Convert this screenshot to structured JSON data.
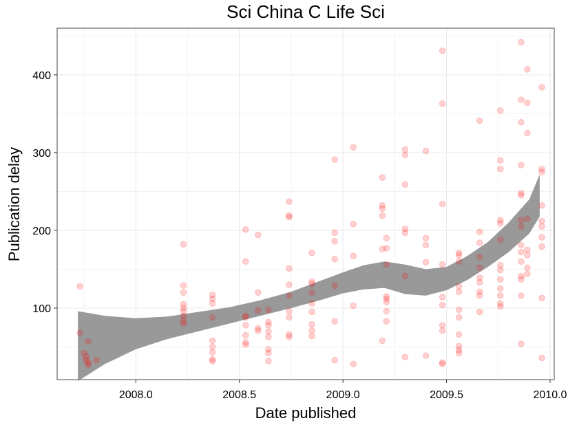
{
  "chart_data": {
    "type": "scatter",
    "title": "Sci China C Life Sci",
    "xlabel": "Date published",
    "ylabel": "Publication delay",
    "xlim": [
      2007.62,
      2010.02
    ],
    "ylim": [
      8,
      460
    ],
    "x_ticks": [
      2008.0,
      2008.5,
      2009.0,
      2009.5,
      2010.0
    ],
    "x_tick_labels": [
      "2008.0",
      "2008.5",
      "2009.0",
      "2009.5",
      "2010.0"
    ],
    "y_ticks": [
      100,
      200,
      300,
      400
    ],
    "y_tick_labels": [
      "100",
      "200",
      "300",
      "400"
    ],
    "grid": true,
    "point_color": "#ff0000",
    "point_opacity": 0.18,
    "ribbon_color": "#999999",
    "panel_border_color": "#8a8a8a",
    "grid_color": "#ebebeb",
    "series": [
      {
        "points": [
          [
            2007.73,
            128
          ],
          [
            2007.73,
            68
          ],
          [
            2007.75,
            42
          ],
          [
            2007.76,
            38
          ],
          [
            2007.76,
            33
          ],
          [
            2007.77,
            57
          ],
          [
            2007.77,
            30
          ],
          [
            2007.77,
            27
          ],
          [
            2007.81,
            33
          ],
          [
            2008.23,
            182
          ],
          [
            2008.23,
            129
          ],
          [
            2008.23,
            120
          ],
          [
            2008.23,
            105
          ],
          [
            2008.23,
            100
          ],
          [
            2008.23,
            96
          ],
          [
            2008.23,
            90
          ],
          [
            2008.23,
            84
          ],
          [
            2008.23,
            80
          ],
          [
            2008.37,
            117
          ],
          [
            2008.37,
            112
          ],
          [
            2008.37,
            106
          ],
          [
            2008.37,
            88
          ],
          [
            2008.37,
            58
          ],
          [
            2008.37,
            50
          ],
          [
            2008.37,
            43
          ],
          [
            2008.37,
            34
          ],
          [
            2008.37,
            32
          ],
          [
            2008.53,
            201
          ],
          [
            2008.53,
            160
          ],
          [
            2008.53,
            90
          ],
          [
            2008.53,
            88
          ],
          [
            2008.53,
            78
          ],
          [
            2008.53,
            65
          ],
          [
            2008.53,
            56
          ],
          [
            2008.53,
            53
          ],
          [
            2008.59,
            194
          ],
          [
            2008.59,
            120
          ],
          [
            2008.59,
            97
          ],
          [
            2008.59,
            74
          ],
          [
            2008.59,
            71
          ],
          [
            2008.64,
            98
          ],
          [
            2008.64,
            82
          ],
          [
            2008.64,
            78
          ],
          [
            2008.64,
            70
          ],
          [
            2008.64,
            63
          ],
          [
            2008.64,
            47
          ],
          [
            2008.64,
            42
          ],
          [
            2008.64,
            32
          ],
          [
            2008.74,
            237
          ],
          [
            2008.74,
            219
          ],
          [
            2008.74,
            217
          ],
          [
            2008.74,
            151
          ],
          [
            2008.74,
            130
          ],
          [
            2008.74,
            116
          ],
          [
            2008.74,
            96
          ],
          [
            2008.74,
            88
          ],
          [
            2008.74,
            66
          ],
          [
            2008.74,
            63
          ],
          [
            2008.85,
            171
          ],
          [
            2008.85,
            134
          ],
          [
            2008.85,
            131
          ],
          [
            2008.85,
            120
          ],
          [
            2008.85,
            106
          ],
          [
            2008.85,
            95
          ],
          [
            2008.85,
            79
          ],
          [
            2008.85,
            71
          ],
          [
            2008.85,
            64
          ],
          [
            2008.96,
            291
          ],
          [
            2008.96,
            197
          ],
          [
            2008.96,
            186
          ],
          [
            2008.96,
            163
          ],
          [
            2008.96,
            129
          ],
          [
            2008.96,
            83
          ],
          [
            2008.96,
            33
          ],
          [
            2009.05,
            307
          ],
          [
            2009.05,
            208
          ],
          [
            2009.05,
            167
          ],
          [
            2009.05,
            103
          ],
          [
            2009.05,
            28
          ],
          [
            2009.19,
            268
          ],
          [
            2009.19,
            232
          ],
          [
            2009.19,
            228
          ],
          [
            2009.19,
            219
          ],
          [
            2009.19,
            176
          ],
          [
            2009.19,
            58
          ],
          [
            2009.21,
            190
          ],
          [
            2009.21,
            177
          ],
          [
            2009.21,
            156
          ],
          [
            2009.21,
            115
          ],
          [
            2009.21,
            112
          ],
          [
            2009.21,
            108
          ],
          [
            2009.21,
            96
          ],
          [
            2009.21,
            83
          ],
          [
            2009.3,
            304
          ],
          [
            2009.3,
            297
          ],
          [
            2009.3,
            259
          ],
          [
            2009.3,
            202
          ],
          [
            2009.3,
            197
          ],
          [
            2009.3,
            141
          ],
          [
            2009.3,
            37
          ],
          [
            2009.4,
            302
          ],
          [
            2009.4,
            190
          ],
          [
            2009.4,
            181
          ],
          [
            2009.4,
            159
          ],
          [
            2009.4,
            39
          ],
          [
            2009.48,
            431
          ],
          [
            2009.48,
            363
          ],
          [
            2009.48,
            234
          ],
          [
            2009.48,
            156
          ],
          [
            2009.48,
            114
          ],
          [
            2009.48,
            104
          ],
          [
            2009.48,
            78
          ],
          [
            2009.48,
            71
          ],
          [
            2009.48,
            30
          ],
          [
            2009.48,
            28
          ],
          [
            2009.56,
            171
          ],
          [
            2009.56,
            168
          ],
          [
            2009.56,
            160
          ],
          [
            2009.56,
            128
          ],
          [
            2009.56,
            121
          ],
          [
            2009.56,
            98
          ],
          [
            2009.56,
            88
          ],
          [
            2009.56,
            66
          ],
          [
            2009.56,
            51
          ],
          [
            2009.56,
            46
          ],
          [
            2009.56,
            42
          ],
          [
            2009.66,
            341
          ],
          [
            2009.66,
            198
          ],
          [
            2009.66,
            184
          ],
          [
            2009.66,
            166
          ],
          [
            2009.66,
            152
          ],
          [
            2009.66,
            139
          ],
          [
            2009.66,
            133
          ],
          [
            2009.66,
            121
          ],
          [
            2009.66,
            116
          ],
          [
            2009.66,
            95
          ],
          [
            2009.76,
            354
          ],
          [
            2009.76,
            290
          ],
          [
            2009.76,
            279
          ],
          [
            2009.76,
            213
          ],
          [
            2009.76,
            209
          ],
          [
            2009.76,
            188
          ],
          [
            2009.76,
            155
          ],
          [
            2009.76,
            149
          ],
          [
            2009.76,
            137
          ],
          [
            2009.76,
            125
          ],
          [
            2009.76,
            116
          ],
          [
            2009.76,
            106
          ],
          [
            2009.76,
            102
          ],
          [
            2009.86,
            442
          ],
          [
            2009.86,
            368
          ],
          [
            2009.86,
            339
          ],
          [
            2009.86,
            284
          ],
          [
            2009.86,
            248
          ],
          [
            2009.86,
            245
          ],
          [
            2009.86,
            213
          ],
          [
            2009.86,
            205
          ],
          [
            2009.86,
            181
          ],
          [
            2009.86,
            172
          ],
          [
            2009.86,
            160
          ],
          [
            2009.86,
            141
          ],
          [
            2009.86,
            137
          ],
          [
            2009.86,
            116
          ],
          [
            2009.86,
            54
          ],
          [
            2009.89,
            407
          ],
          [
            2009.89,
            364
          ],
          [
            2009.89,
            325
          ],
          [
            2009.89,
            215
          ],
          [
            2009.89,
            175
          ],
          [
            2009.89,
            168
          ],
          [
            2009.89,
            152
          ],
          [
            2009.89,
            144
          ],
          [
            2009.96,
            384
          ],
          [
            2009.96,
            279
          ],
          [
            2009.96,
            275
          ],
          [
            2009.96,
            232
          ],
          [
            2009.96,
            212
          ],
          [
            2009.96,
            205
          ],
          [
            2009.96,
            191
          ],
          [
            2009.96,
            179
          ],
          [
            2009.96,
            113
          ],
          [
            2009.96,
            36
          ]
        ]
      }
    ],
    "smooth_band": {
      "x": [
        2007.72,
        2007.85,
        2008.0,
        2008.15,
        2008.3,
        2008.45,
        2008.6,
        2008.75,
        2008.9,
        2009.0,
        2009.1,
        2009.2,
        2009.3,
        2009.4,
        2009.5,
        2009.6,
        2009.7,
        2009.8,
        2009.9,
        2009.95
      ],
      "upper": [
        96,
        90,
        87,
        89,
        95,
        101,
        110,
        121,
        136,
        146,
        155,
        160,
        156,
        150,
        153,
        167,
        185,
        210,
        240,
        272
      ],
      "lower": [
        6,
        28,
        47,
        60,
        70,
        80,
        90,
        100,
        111,
        119,
        124,
        126,
        118,
        116,
        123,
        136,
        153,
        172,
        196,
        218
      ]
    }
  }
}
